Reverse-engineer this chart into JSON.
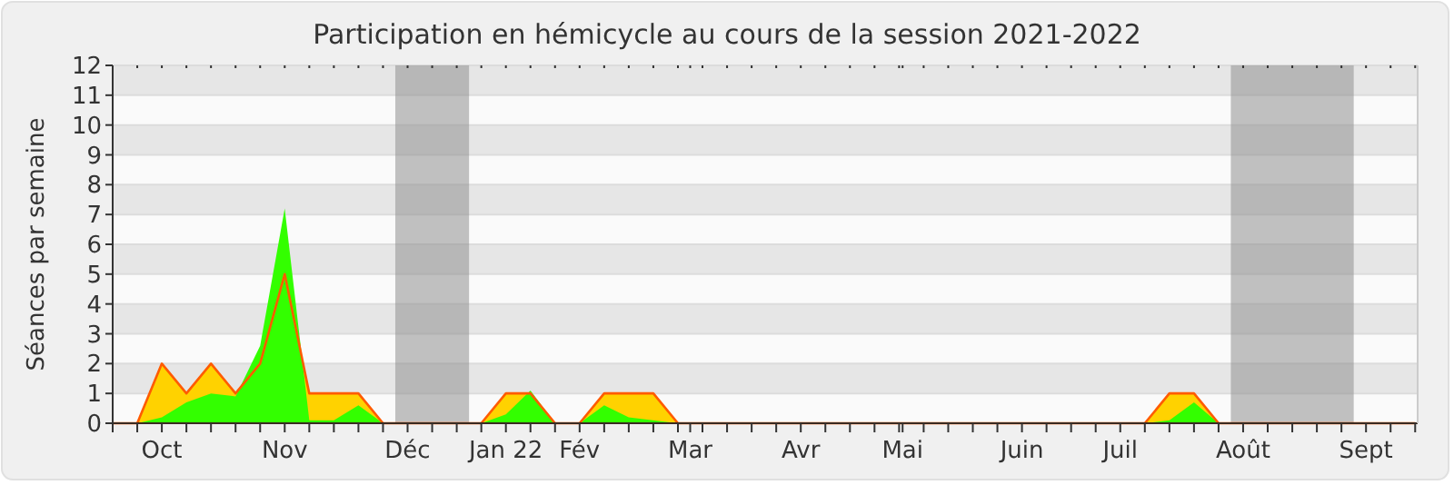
{
  "chart_data": {
    "type": "area",
    "title": "Participation en hémicycle au cours de la session 2021-2022",
    "ylabel": "Séances par semaine",
    "x": [
      "2021-09-20",
      "2021-09-27",
      "2021-10-04",
      "2021-10-11",
      "2021-10-18",
      "2021-10-25",
      "2021-11-01",
      "2021-11-08",
      "2021-11-15",
      "2021-11-22",
      "2021-11-29",
      "2021-12-06",
      "2021-12-13",
      "2021-12-20",
      "2021-12-27",
      "2022-01-03",
      "2022-01-10",
      "2022-01-17",
      "2022-01-24",
      "2022-01-31",
      "2022-02-07",
      "2022-02-14",
      "2022-02-21",
      "2022-02-28",
      "2022-03-07",
      "2022-03-14",
      "2022-03-21",
      "2022-03-28",
      "2022-04-04",
      "2022-04-11",
      "2022-04-18",
      "2022-04-25",
      "2022-05-02",
      "2022-05-09",
      "2022-05-16",
      "2022-05-23",
      "2022-05-30",
      "2022-06-06",
      "2022-06-13",
      "2022-06-20",
      "2022-06-27",
      "2022-07-04",
      "2022-07-11",
      "2022-07-18",
      "2022-07-25",
      "2022-08-01",
      "2022-08-08",
      "2022-08-15",
      "2022-08-22",
      "2022-08-29",
      "2022-09-05",
      "2022-09-12",
      "2022-09-19",
      "2022-09-26"
    ],
    "series": [
      {
        "color": "#ffd200",
        "values": [
          0,
          0,
          2,
          1,
          2,
          1,
          2,
          5,
          1,
          1,
          1,
          0,
          0,
          0,
          0,
          0,
          1,
          1,
          0,
          0,
          1,
          1,
          1,
          0,
          0,
          0,
          0,
          0,
          0,
          0,
          0,
          0,
          0,
          0,
          0,
          0,
          0,
          0,
          0,
          0,
          0,
          0,
          0,
          1,
          1,
          0,
          0,
          0,
          0,
          0,
          0,
          0,
          0,
          0
        ]
      },
      {
        "color": "#33ff00",
        "values": [
          0,
          0,
          0.2,
          0.7,
          1.0,
          0.9,
          2.6,
          7.2,
          0.1,
          0.1,
          0.6,
          0,
          0,
          0,
          0,
          0,
          0.3,
          1.1,
          0,
          0,
          0.6,
          0.2,
          0.1,
          0,
          0,
          0,
          0,
          0,
          0,
          0,
          0,
          0,
          0,
          0,
          0,
          0,
          0,
          0,
          0,
          0,
          0,
          0,
          0,
          0.1,
          0.7,
          0,
          0,
          0,
          0,
          0,
          0,
          0,
          0,
          0
        ]
      }
    ],
    "xlim": [
      "2021-09-20",
      "2022-09-26T17:00"
    ],
    "xticks": [
      {
        "value": "2021-10-04",
        "label": "Oct"
      },
      {
        "value": "2021-11-08",
        "label": "Nov"
      },
      {
        "value": "2021-12-13",
        "label": "Déc"
      },
      {
        "value": "2022-01-10",
        "label": "Jan 22"
      },
      {
        "value": "2022-01-31",
        "label": "Fév"
      },
      {
        "value": "2022-03-03T12:00",
        "label": "Mar"
      },
      {
        "value": "2022-04-04",
        "label": "Avr"
      },
      {
        "value": "2022-05-03",
        "label": "Mai"
      },
      {
        "value": "2022-06-06",
        "label": "Juin"
      },
      {
        "value": "2022-07-04",
        "label": "Juil"
      },
      {
        "value": "2022-08-08",
        "label": "Août"
      },
      {
        "value": "2022-09-12",
        "label": "Sept"
      },
      {
        "value": "2021-09-20",
        "label": null
      },
      {
        "value": "2021-09-27",
        "label": null
      },
      {
        "value": "2021-10-11",
        "label": null
      },
      {
        "value": "2021-10-18",
        "label": null
      },
      {
        "value": "2021-10-25",
        "label": null
      },
      {
        "value": "2021-11-01",
        "label": null
      },
      {
        "value": "2021-11-15",
        "label": null
      },
      {
        "value": "2021-11-22",
        "label": null
      },
      {
        "value": "2021-11-29",
        "label": null
      },
      {
        "value": "2021-12-06",
        "label": null
      },
      {
        "value": "2021-12-20",
        "label": null
      },
      {
        "value": "2021-12-27",
        "label": null
      },
      {
        "value": "2022-01-03",
        "label": null
      },
      {
        "value": "2022-01-17",
        "label": null
      },
      {
        "value": "2022-01-24",
        "label": null
      },
      {
        "value": "2022-02-07",
        "label": null
      },
      {
        "value": "2022-02-14",
        "label": null
      },
      {
        "value": "2022-02-21",
        "label": null
      },
      {
        "value": "2022-02-28",
        "label": null
      },
      {
        "value": "2022-03-07",
        "label": null
      },
      {
        "value": "2022-03-14",
        "label": null
      },
      {
        "value": "2022-03-21",
        "label": null
      },
      {
        "value": "2022-03-28",
        "label": null
      },
      {
        "value": "2022-04-11",
        "label": null
      },
      {
        "value": "2022-04-18",
        "label": null
      },
      {
        "value": "2022-04-25",
        "label": null
      },
      {
        "value": "2022-05-02",
        "label": null
      },
      {
        "value": "2022-05-09",
        "label": null
      },
      {
        "value": "2022-05-16",
        "label": null
      },
      {
        "value": "2022-05-23",
        "label": null
      },
      {
        "value": "2022-05-30",
        "label": null
      },
      {
        "value": "2022-06-13",
        "label": null
      },
      {
        "value": "2022-06-20",
        "label": null
      },
      {
        "value": "2022-06-27",
        "label": null
      },
      {
        "value": "2022-07-11",
        "label": null
      },
      {
        "value": "2022-07-18",
        "label": null
      },
      {
        "value": "2022-07-25",
        "label": null
      },
      {
        "value": "2022-08-01",
        "label": null
      },
      {
        "value": "2022-08-15",
        "label": null
      },
      {
        "value": "2022-08-22",
        "label": null
      },
      {
        "value": "2022-08-29",
        "label": null
      },
      {
        "value": "2022-09-05",
        "label": null
      },
      {
        "value": "2022-09-19",
        "label": null
      },
      {
        "value": "2022-09-26",
        "label": null
      }
    ],
    "ylim": [
      0,
      12
    ],
    "yticks": [
      0,
      1,
      2,
      3,
      4,
      5,
      6,
      7,
      8,
      9,
      10,
      11,
      12
    ],
    "grid": "y",
    "bands": [
      {
        "axis": "x",
        "from": "2021-12-09T12:00",
        "to": "2021-12-30T12:00",
        "color": "#909090"
      },
      {
        "axis": "x",
        "from": "2022-08-04T12:00",
        "to": "2022-09-08T12:00",
        "color": "#909090"
      }
    ]
  }
}
